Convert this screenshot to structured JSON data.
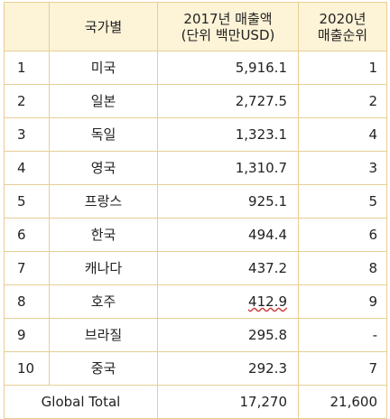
{
  "table": {
    "headers": {
      "rank": "",
      "country": "국가별",
      "sales_line1": "2017년 매출액",
      "sales_line2": "(단위 백만USD)",
      "order_line1": "2020년",
      "order_line2": "매출순위"
    },
    "rows": [
      {
        "rank": "1",
        "country": "미국",
        "sales": "5,916.1",
        "order": "1"
      },
      {
        "rank": "2",
        "country": "일본",
        "sales": "2,727.5",
        "order": "2"
      },
      {
        "rank": "3",
        "country": "독일",
        "sales": "1,323.1",
        "order": "4"
      },
      {
        "rank": "4",
        "country": "영국",
        "sales": "1,310.7",
        "order": "3"
      },
      {
        "rank": "5",
        "country": "프랑스",
        "sales": "925.1",
        "order": "5"
      },
      {
        "rank": "6",
        "country": "한국",
        "sales": "494.4",
        "order": "6"
      },
      {
        "rank": "7",
        "country": "캐나다",
        "sales": "437.2",
        "order": "8"
      },
      {
        "rank": "8",
        "country": "호주",
        "sales": "412.9",
        "order": "9"
      },
      {
        "rank": "9",
        "country": "브라질",
        "sales": "295.8",
        "order": "-"
      },
      {
        "rank": "10",
        "country": "중국",
        "sales": "292.3",
        "order": "7"
      }
    ],
    "total": {
      "label": "Global Total",
      "sales": "17,270",
      "order": "21,600"
    }
  },
  "colors": {
    "header_background": "#fdf3d7",
    "border": "#e6cf94"
  }
}
